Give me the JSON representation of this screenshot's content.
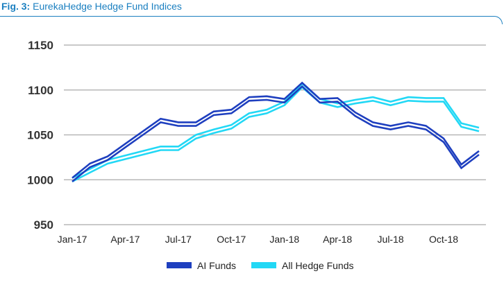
{
  "figure": {
    "number_label": "Fig. 3:",
    "title": "EurekaHedge Hedge Fund Indices"
  },
  "colors": {
    "frame": "#1a7fc0",
    "grid": "#b7b7b7"
  },
  "chart_data": {
    "type": "line",
    "title": "",
    "xlabel": "",
    "ylabel": "",
    "ylim": [
      950,
      1150
    ],
    "yticks": [
      950,
      1000,
      1050,
      1100,
      1150
    ],
    "x_tick_labels": [
      "Jan-17",
      "Apr-17",
      "Jul-17",
      "Oct-17",
      "Jan-18",
      "Apr-18",
      "Jul-18",
      "Oct-18"
    ],
    "x_tick_indices": [
      0,
      3,
      6,
      9,
      12,
      15,
      18,
      21
    ],
    "grid": "horizontal",
    "legend_position": "bottom-center",
    "series": [
      {
        "name": "AI Funds",
        "color": "#1e3fbf",
        "style": "double-line",
        "values": [
          1000,
          1016,
          1024,
          1038,
          1052,
          1066,
          1062,
          1062,
          1074,
          1076,
          1090,
          1091,
          1088,
          1106,
          1088,
          1089,
          1073,
          1062,
          1058,
          1062,
          1058,
          1044,
          1015,
          1030
        ]
      },
      {
        "name": "All Hedge Funds",
        "color": "#22d8f5",
        "style": "double-line",
        "values": [
          1000,
          1010,
          1020,
          1025,
          1030,
          1035,
          1035,
          1048,
          1054,
          1059,
          1072,
          1076,
          1085,
          1105,
          1088,
          1083,
          1087,
          1090,
          1085,
          1090,
          1089,
          1089,
          1061,
          1056
        ]
      }
    ]
  }
}
